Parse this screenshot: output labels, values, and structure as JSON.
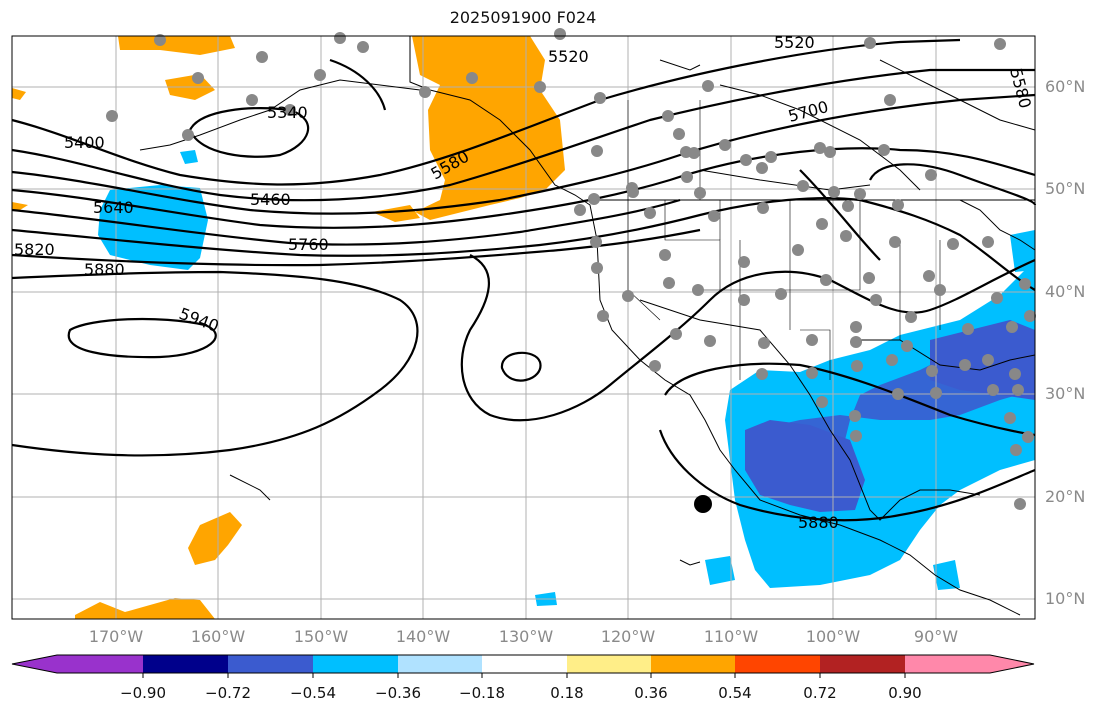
{
  "title": "2025091900 F024",
  "lat_labels": [
    "60°N",
    "50°N",
    "40°N",
    "30°N",
    "20°N",
    "10°N"
  ],
  "lon_labels": [
    "170°W",
    "160°W",
    "150°W",
    "140°W",
    "130°W",
    "120°W",
    "110°W",
    "100°W",
    "90°W"
  ],
  "contour_labels": [
    "5400",
    "5340",
    "5460",
    "5520",
    "5520",
    "5580",
    "5580",
    "5640",
    "5700",
    "5760",
    "5820",
    "5880",
    "5880",
    "5940"
  ],
  "colorbar": {
    "ticks": [
      "−0.90",
      "−0.72",
      "−0.54",
      "−0.36",
      "−0.18",
      "0.18",
      "0.36",
      "0.54",
      "0.72",
      "0.90"
    ],
    "colors": [
      "#9932cc",
      "#00008b",
      "#3b5bcf",
      "#00bfff",
      "#b0e2ff",
      "#ffffff",
      "#ffee88",
      "#ffa500",
      "#ff4500",
      "#b22222",
      "#ff88aa"
    ]
  },
  "marker_color": "#888888"
}
